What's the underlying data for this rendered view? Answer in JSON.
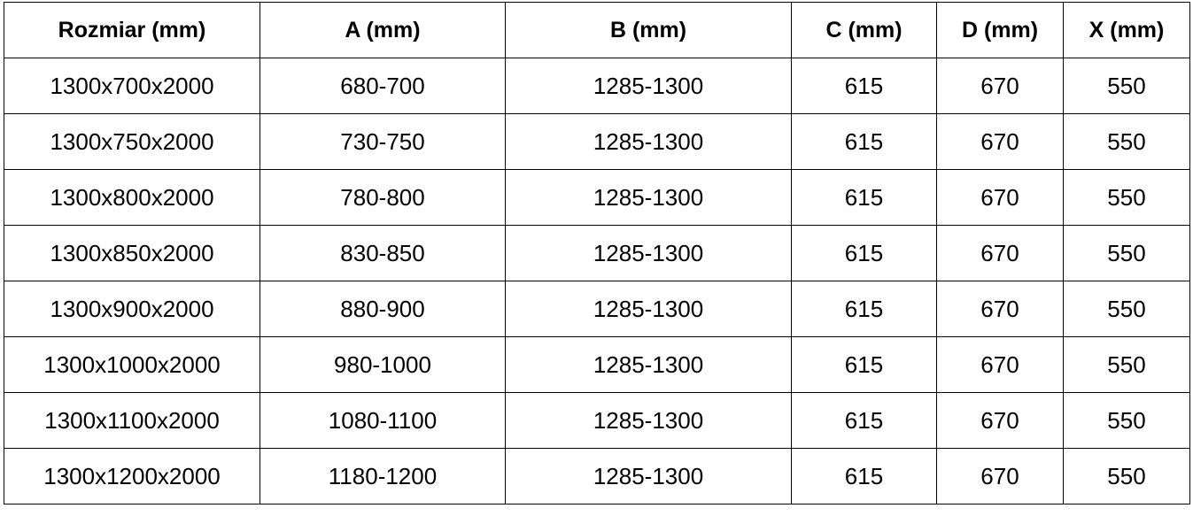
{
  "headers": [
    "Rozmiar (mm)",
    "A (mm)",
    "B (mm)",
    "C (mm)",
    "D (mm)",
    "X (mm)"
  ],
  "rows": [
    [
      "1300x700x2000",
      "680-700",
      "1285-1300",
      "615",
      "670",
      "550"
    ],
    [
      "1300x750x2000",
      "730-750",
      "1285-1300",
      "615",
      "670",
      "550"
    ],
    [
      "1300x800x2000",
      "780-800",
      "1285-1300",
      "615",
      "670",
      "550"
    ],
    [
      "1300x850x2000",
      "830-850",
      "1285-1300",
      "615",
      "670",
      "550"
    ],
    [
      "1300x900x2000",
      "880-900",
      "1285-1300",
      "615",
      "670",
      "550"
    ],
    [
      "1300x1000x2000",
      "980-1000",
      "1285-1300",
      "615",
      "670",
      "550"
    ],
    [
      "1300x1100x2000",
      "1080-1100",
      "1285-1300",
      "615",
      "670",
      "550"
    ],
    [
      "1300x1200x2000",
      "1180-1200",
      "1285-1300",
      "615",
      "670",
      "550"
    ]
  ]
}
